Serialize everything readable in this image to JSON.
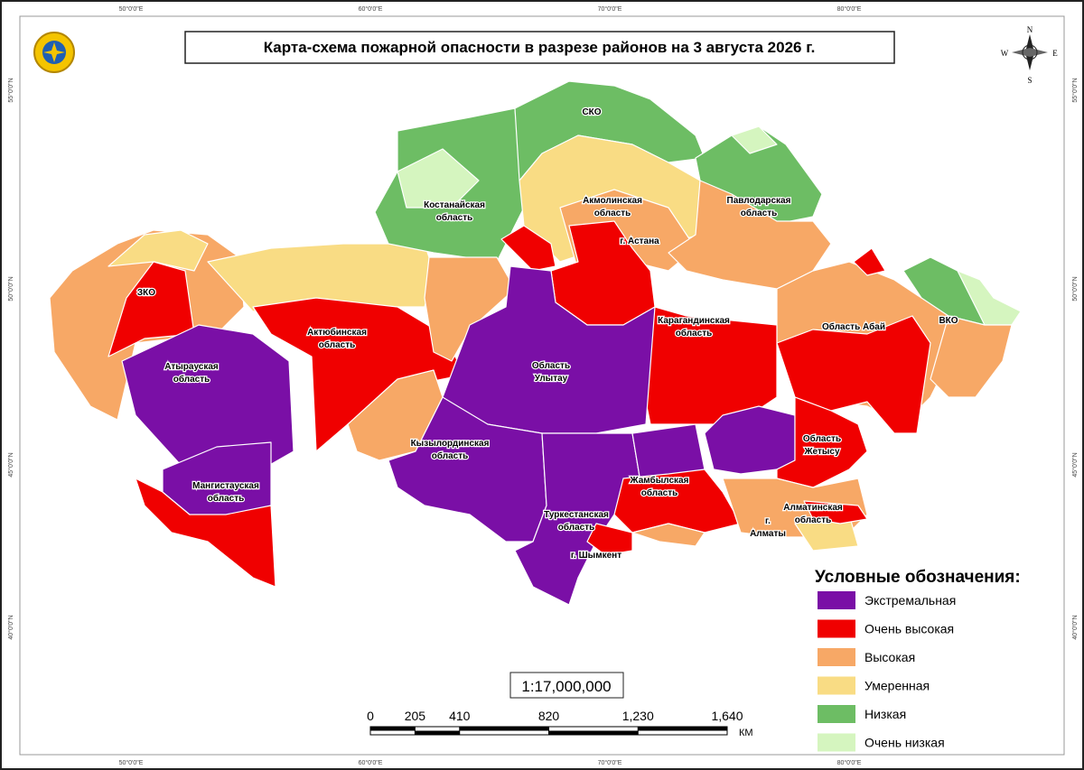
{
  "header": {
    "title": "Карта-схема пожарной опасности в разрезе районов на 3 августа 2026 г."
  },
  "graticule": {
    "longitudes": [
      "50°0'0\"E",
      "60°0'0\"E",
      "70°0'0\"E",
      "80°0'0\"E"
    ],
    "latitudes": [
      "55°0'0\"N",
      "50°0'0\"N",
      "45°0'0\"N",
      "40°0'0\"N"
    ]
  },
  "compass": {
    "n": "N",
    "e": "E",
    "s": "S",
    "w": "W"
  },
  "regions": [
    {
      "lines": [
        "СКО"
      ]
    },
    {
      "lines": [
        "Костанайская",
        "область"
      ]
    },
    {
      "lines": [
        "Акмолинская",
        "область"
      ]
    },
    {
      "lines": [
        "г. Астана"
      ]
    },
    {
      "lines": [
        "Павлодарская",
        "область"
      ]
    },
    {
      "lines": [
        "ЗКО"
      ]
    },
    {
      "lines": [
        "Актюбинская",
        "область"
      ]
    },
    {
      "lines": [
        "ВКО"
      ]
    },
    {
      "lines": [
        "Область Абай"
      ]
    },
    {
      "lines": [
        "Карагандинская",
        "область"
      ]
    },
    {
      "lines": [
        "Атырауская",
        "область"
      ]
    },
    {
      "lines": [
        "Область",
        "Улытау"
      ]
    },
    {
      "lines": [
        "Кызылординская",
        "область"
      ]
    },
    {
      "lines": [
        "Область",
        "Жетысу"
      ]
    },
    {
      "lines": [
        "Мангистауская",
        "область"
      ]
    },
    {
      "lines": [
        "Жамбылская",
        "область"
      ]
    },
    {
      "lines": [
        "Алматинская",
        "область"
      ]
    },
    {
      "lines": [
        "г.",
        "Алматы"
      ]
    },
    {
      "lines": [
        "Туркестанская",
        "область"
      ]
    },
    {
      "lines": [
        "г. Шымкент"
      ]
    }
  ],
  "legend": {
    "title": "Условные обозначения:",
    "items": [
      {
        "label": "Экстремальная",
        "color": "#7a0fa6"
      },
      {
        "label": "Очень высокая",
        "color": "#f00000"
      },
      {
        "label": "Высокая",
        "color": "#f7a866"
      },
      {
        "label": "Умеренная",
        "color": "#f9dc84"
      },
      {
        "label": "Низкая",
        "color": "#6dbd64"
      },
      {
        "label": "Очень низкая",
        "color": "#d5f5bf"
      }
    ]
  },
  "scale": {
    "ratio": "1:17,000,000",
    "ticks": [
      0,
      205,
      410,
      820,
      {
        "value": 1230,
        "label": "1,230"
      },
      {
        "value": 1640,
        "label": "1,640"
      }
    ],
    "unit": "КМ"
  }
}
